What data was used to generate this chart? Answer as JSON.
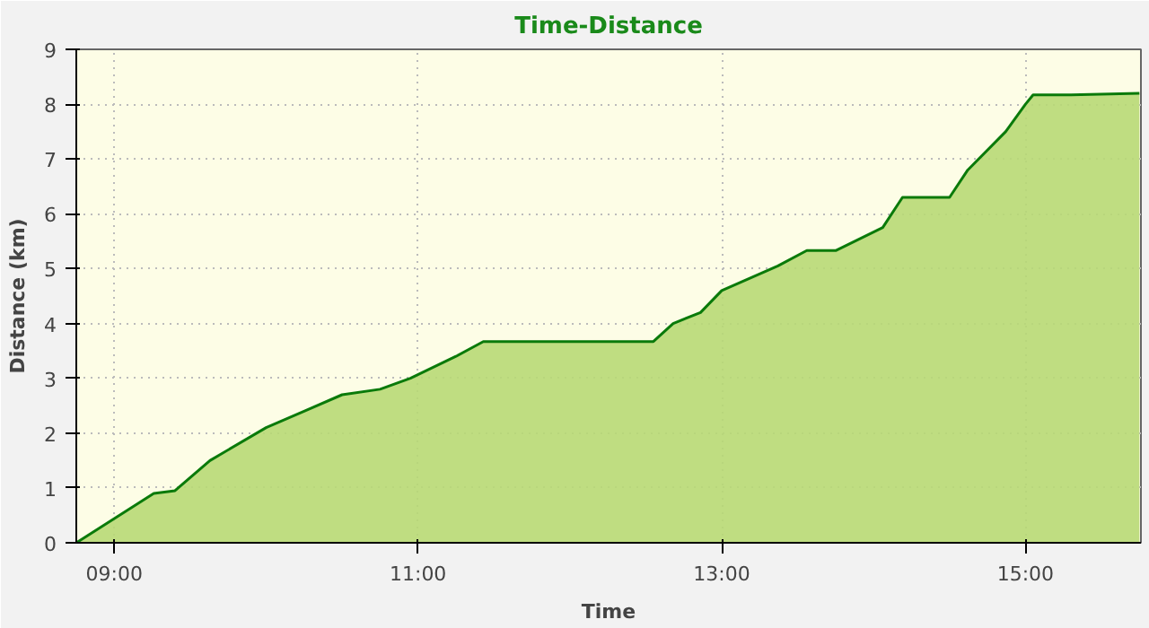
{
  "chart_data": {
    "type": "area",
    "title": "Time-Distance",
    "xlabel": "Time",
    "ylabel": "Distance (km)",
    "x": [
      8.75,
      9.26,
      9.4,
      9.63,
      10.0,
      10.25,
      10.5,
      10.75,
      10.95,
      11.25,
      11.43,
      11.75,
      12.55,
      12.68,
      12.86,
      13.0,
      13.37,
      13.56,
      13.75,
      14.06,
      14.19,
      14.5,
      14.62,
      14.87,
      15.0,
      15.05,
      15.3,
      15.75
    ],
    "values": [
      0,
      0.9,
      0.95,
      1.5,
      2.1,
      2.4,
      2.7,
      2.8,
      3.0,
      3.4,
      3.67,
      3.67,
      3.67,
      4.0,
      4.2,
      4.6,
      5.05,
      5.33,
      5.33,
      5.75,
      6.3,
      6.3,
      6.8,
      7.5,
      8.0,
      8.17,
      8.17,
      8.2
    ],
    "color": "#0a7a0a",
    "xlim": [
      8.75,
      15.76
    ],
    "ylim": [
      0,
      9
    ],
    "xticks": [
      {
        "value": 9,
        "label": "09:00"
      },
      {
        "value": 11,
        "label": "11:00"
      },
      {
        "value": 13,
        "label": "13:00"
      },
      {
        "value": 15,
        "label": "15:00"
      }
    ],
    "yticks": [
      0,
      1,
      2,
      3,
      4,
      5,
      6,
      7,
      8,
      9
    ],
    "grid": true
  }
}
